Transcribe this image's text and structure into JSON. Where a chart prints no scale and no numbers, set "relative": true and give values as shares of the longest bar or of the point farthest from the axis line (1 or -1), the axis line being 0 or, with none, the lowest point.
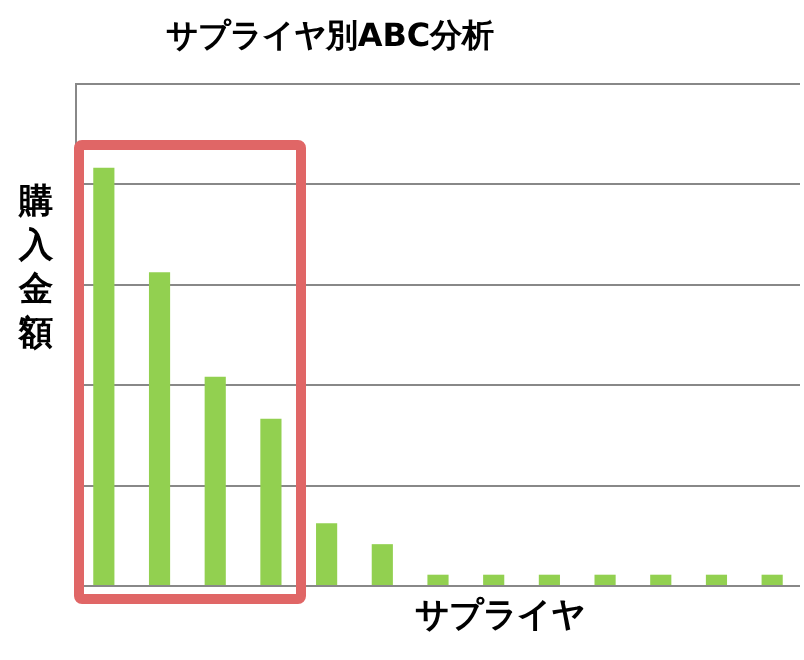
{
  "chart_data": {
    "type": "bar",
    "title": "サプライヤ別ABC分析",
    "xlabel": "サプライヤ",
    "ylabel": "購入金額",
    "categories": [
      null,
      null,
      null,
      null,
      null,
      null,
      null,
      null,
      null,
      null,
      null,
      null,
      null
    ],
    "values": [
      1.0,
      0.75,
      0.5,
      0.4,
      0.15,
      0.1,
      0.027,
      0.027,
      0.027,
      0.027,
      0.027,
      0.027,
      0.027
    ],
    "color": "#92d050",
    "relative": true,
    "grid": "y",
    "tick_labels": false
  }
}
